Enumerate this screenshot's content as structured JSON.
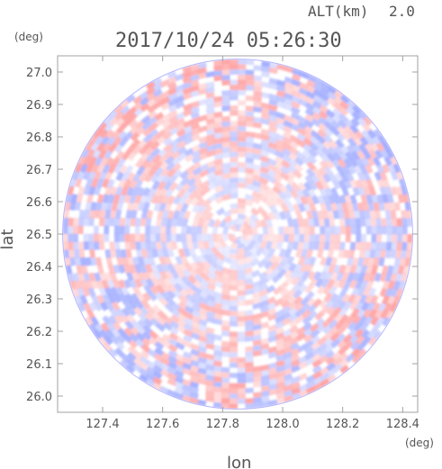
{
  "header": {
    "altitude_label": "ALT(km)",
    "altitude_value": "2.0",
    "timestamp": "2017/10/24 05:26:30"
  },
  "chart_data": {
    "type": "heatmap",
    "title": "2017/10/24 05:26:30",
    "xlabel": "lon",
    "ylabel": "lat",
    "x_unit": "(deg)",
    "y_unit": "(deg)",
    "xlim": [
      127.25,
      128.45
    ],
    "ylim": [
      25.95,
      27.05
    ],
    "x_ticks": [
      "127.4",
      "127.6",
      "127.8",
      "128.0",
      "128.2",
      "128.4"
    ],
    "x_tick_values": [
      127.4,
      127.6,
      127.8,
      128.0,
      128.2,
      128.4
    ],
    "y_ticks": [
      "26.0",
      "26.1",
      "26.2",
      "26.3",
      "26.4",
      "26.5",
      "26.6",
      "26.7",
      "26.8",
      "26.9",
      "27.0"
    ],
    "y_tick_values": [
      26.0,
      26.1,
      26.2,
      26.3,
      26.4,
      26.5,
      26.6,
      26.7,
      26.8,
      26.9,
      27.0
    ],
    "center_lon": 127.85,
    "center_lat": 26.5,
    "radius_lat_deg": 0.54,
    "colors": {
      "positive": "#ff9a9a",
      "negative": "#9aa6ff",
      "neutral": "#ffffff",
      "frame": "#a0a0a0"
    }
  }
}
